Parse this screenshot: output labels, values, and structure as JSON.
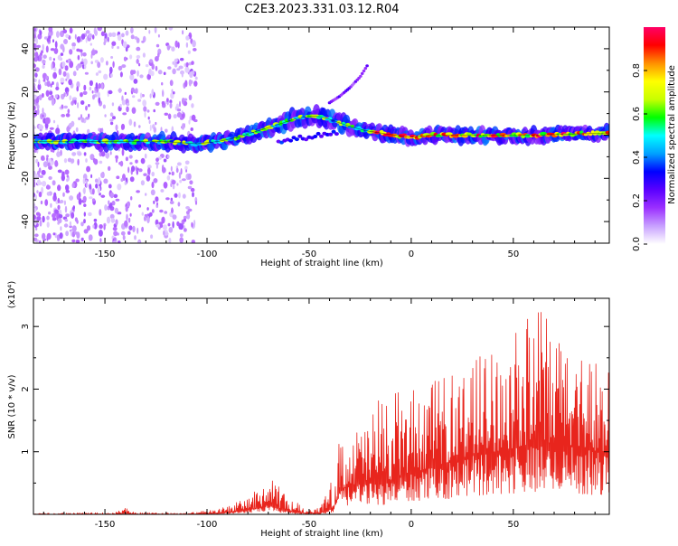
{
  "title": "C2E3.2023.331.03.12.R04",
  "chart_data": [
    {
      "type": "heatmap",
      "name": "spectrogram",
      "xlabel": "Height of straight line (km)",
      "ylabel": "Frequency (Hz)",
      "xlim": [
        -185,
        97
      ],
      "ylim": [
        -50,
        50
      ],
      "xticks": [
        -150,
        -100,
        -50,
        0,
        50
      ],
      "yticks": [
        -40,
        -20,
        0,
        20,
        40
      ],
      "xtick_labels": [
        "-150",
        "-100",
        "-50",
        "0",
        "50"
      ],
      "ytick_labels": [
        "-40",
        "-20",
        "0",
        "20",
        "40"
      ],
      "ridge": {
        "x": [
          -185,
          -150,
          -120,
          -105,
          -95,
          -85,
          -75,
          -65,
          -55,
          -48,
          -42,
          -36,
          -30,
          -22,
          -15,
          -8,
          0,
          10,
          30,
          60,
          97
        ],
        "frequency": [
          -3,
          -3,
          -3,
          -4,
          -3,
          -1,
          2,
          5,
          8,
          9,
          8,
          6,
          4,
          2,
          1,
          0,
          -1,
          0,
          0,
          0,
          1
        ]
      },
      "side_branch": {
        "x": [
          -40,
          -35,
          -30,
          -25,
          -21
        ],
        "frequency": [
          15,
          18,
          22,
          27,
          33
        ]
      },
      "colorbar": {
        "label": "Normalized spectral amplitude",
        "ticks": [
          0.0,
          0.2,
          0.4,
          0.6,
          0.8
        ],
        "tick_labels": [
          "0.0",
          "0.2",
          "0.4",
          "0.6",
          "0.8"
        ],
        "range": [
          0,
          1
        ],
        "colors": [
          "#ffffff",
          "#c8a0ff",
          "#9b30ff",
          "#5a00ff",
          "#0000ff",
          "#00a0ff",
          "#00ffff",
          "#00ff00",
          "#c8ff00",
          "#ffff00",
          "#ff9000",
          "#ff0000",
          "#ff0066"
        ]
      }
    },
    {
      "type": "line",
      "name": "snr",
      "xlabel": "Height of straight line (km)",
      "ylabel": "SNR (10 * v/v)",
      "yexponent": "(x10⁴)",
      "xlim": [
        -185,
        97
      ],
      "ylim": [
        0,
        3.45
      ],
      "xticks": [
        -150,
        -100,
        -50,
        0,
        50
      ],
      "yticks": [
        1,
        2,
        3
      ],
      "xtick_labels": [
        "-150",
        "-100",
        "-50",
        "0",
        "50"
      ],
      "ytick_labels": [
        "1",
        "2",
        "3"
      ],
      "color": "#e8251d",
      "envelope": {
        "x": [
          -185,
          -145,
          -140,
          -135,
          -110,
          -95,
          -85,
          -75,
          -70,
          -65,
          -60,
          -52,
          -45,
          -38,
          -35,
          -25,
          -15,
          -5,
          5,
          15,
          25,
          35,
          45,
          55,
          60,
          70,
          80,
          90,
          97
        ],
        "base": [
          0.0,
          0.0,
          0.02,
          0.0,
          0.0,
          0.02,
          0.05,
          0.1,
          0.15,
          0.1,
          0.05,
          0.02,
          0.02,
          0.1,
          0.4,
          0.5,
          0.5,
          0.6,
          0.7,
          0.8,
          0.9,
          1.0,
          1.0,
          1.1,
          1.1,
          1.1,
          1.1,
          1.0,
          1.0
        ],
        "peak": [
          0.02,
          0.03,
          0.12,
          0.03,
          0.02,
          0.08,
          0.2,
          0.4,
          0.6,
          0.45,
          0.3,
          0.1,
          0.1,
          0.6,
          1.3,
          1.4,
          1.9,
          2.0,
          2.0,
          2.2,
          2.4,
          2.6,
          2.8,
          3.0,
          3.4,
          3.0,
          2.8,
          2.6,
          2.4
        ]
      }
    }
  ]
}
